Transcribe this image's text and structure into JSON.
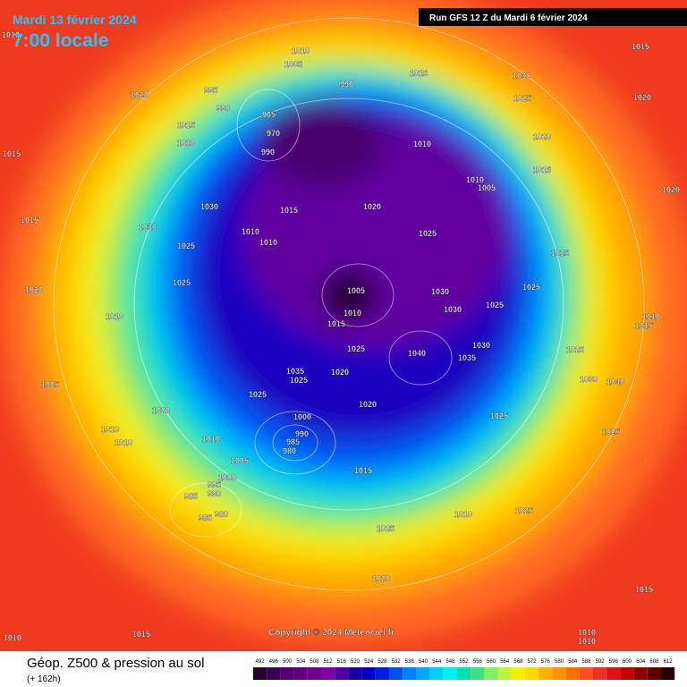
{
  "header": {
    "date": "Mardi 13 février 2024",
    "time": "7:00 locale",
    "run": "Run GFS 12 Z du Mardi 6 février 2024"
  },
  "footer": {
    "title": "Géop. Z500 & pression au sol",
    "lead": "(+ 162h)",
    "copyright": "Copyright © 2024 Meteociel.fr"
  },
  "scale": {
    "values": [
      492,
      496,
      500,
      504,
      508,
      512,
      516,
      520,
      524,
      528,
      532,
      536,
      540,
      544,
      548,
      552,
      556,
      560,
      564,
      568,
      572,
      576,
      580,
      584,
      588,
      592,
      596,
      600,
      604,
      608,
      612
    ],
    "colors": [
      "#2a0030",
      "#3a0050",
      "#500070",
      "#600080",
      "#700090",
      "#8000a0",
      "#5000a0",
      "#1a00a0",
      "#0000c8",
      "#0020e0",
      "#0050f0",
      "#0080ff",
      "#00a8ff",
      "#00d0ff",
      "#00f0f0",
      "#00e0b0",
      "#40e080",
      "#80f060",
      "#c0f040",
      "#f0f000",
      "#ffd800",
      "#ffb000",
      "#ff9000",
      "#ff7000",
      "#ff5020",
      "#f03020",
      "#e01010",
      "#c00000",
      "#900000",
      "#600000",
      "#200000"
    ]
  },
  "isobar_labels": [
    "1010",
    "1010",
    "1005",
    "995",
    "990",
    "990",
    "1020",
    "1015",
    "1010",
    "1015",
    "1030",
    "1030",
    "1015",
    "1025",
    "1010",
    "1010",
    "1015",
    "1020",
    "1025",
    "1010",
    "1015",
    "1030",
    "1025",
    "1020",
    "1015",
    "1010",
    "1005",
    "1020",
    "1015",
    "1020",
    "1015",
    "1025",
    "1025",
    "1030",
    "1030",
    "1005",
    "1010",
    "1015",
    "1025",
    "1020",
    "1040",
    "1035",
    "1030",
    "1025",
    "1010",
    "1015",
    "1030",
    "1040",
    "1025",
    "1025",
    "1020",
    "1015",
    "1010",
    "1025",
    "1025",
    "1020",
    "1015",
    "1010",
    "1010",
    "1015",
    "1010",
    "1000",
    "1010",
    "1010",
    "1010",
    "1005",
    "1000",
    "995",
    "990",
    "985",
    "985",
    "980",
    "1000",
    "990",
    "985",
    "980",
    "1025",
    "1035",
    "1025",
    "1020",
    "1020",
    "1010",
    "1005",
    "1025",
    "965",
    "970",
    "990"
  ]
}
